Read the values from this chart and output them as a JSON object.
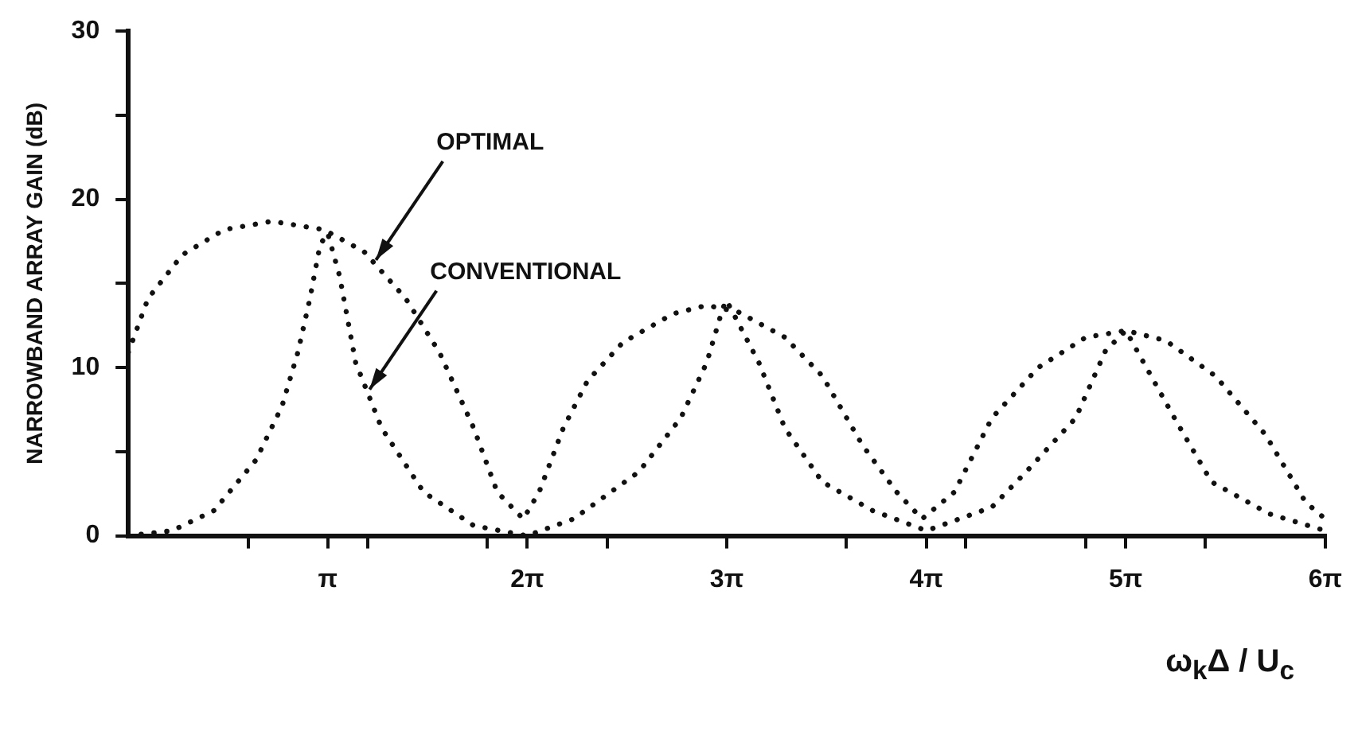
{
  "chart_data": {
    "type": "line",
    "ylabel": "NARROWBAND ARRAY GAIN (dB)",
    "xlabel": "ω$_{k}$Δ / U$_{c}$",
    "xlim": [
      0,
      18.85
    ],
    "ylim": [
      0,
      30
    ],
    "xticks": [
      {
        "value": 1.885,
        "label": null
      },
      {
        "value": 3.1416,
        "label": "π"
      },
      {
        "value": 3.77,
        "label": null
      },
      {
        "value": 5.655,
        "label": null
      },
      {
        "value": 6.2832,
        "label": "2π"
      },
      {
        "value": 7.54,
        "label": null
      },
      {
        "value": 9.4248,
        "label": "3π"
      },
      {
        "value": 11.31,
        "label": null
      },
      {
        "value": 12.5664,
        "label": "4π"
      },
      {
        "value": 13.19,
        "label": null
      },
      {
        "value": 15.08,
        "label": null
      },
      {
        "value": 15.708,
        "label": "5π"
      },
      {
        "value": 16.96,
        "label": null
      },
      {
        "value": 18.85,
        "label": "6π"
      }
    ],
    "yticks": [
      0,
      {
        "value": 5,
        "label": null
      },
      10,
      {
        "value": 15,
        "label": null
      },
      20,
      {
        "value": 25,
        "label": null
      },
      30
    ],
    "line_style": "dotted",
    "marker": "none",
    "grid": false,
    "series": [
      {
        "color": "#111111",
        "x": [
          0,
          0.31,
          0.85,
          1.51,
          2.26,
          3.08,
          3.71,
          4.37,
          4.9,
          5.44,
          5.81,
          6.22,
          6.47,
          6.85,
          7.23,
          7.79,
          8.58,
          9.11,
          9.61,
          10.34,
          10.93,
          11.56,
          12.1,
          12.5,
          13.01,
          13.6,
          14.33,
          15.08,
          15.71,
          16.34,
          17.12,
          17.91,
          18.54,
          18.85
        ],
        "values": [
          10.9,
          14.1,
          16.7,
          18.2,
          18.7,
          18.2,
          16.9,
          14.1,
          10.9,
          6.4,
          2.6,
          1.0,
          2.6,
          6.4,
          9.2,
          11.5,
          13.2,
          13.7,
          13.3,
          11.8,
          9.5,
          5.4,
          2.6,
          1.0,
          2.6,
          7.0,
          10.0,
          11.8,
          12.2,
          11.6,
          9.5,
          6.0,
          2.0,
          1.0
        ]
      },
      {
        "color": "#111111",
        "x": [
          0,
          0.69,
          1.35,
          2.01,
          2.42,
          2.67,
          2.86,
          3.02,
          3.14,
          3.33,
          3.58,
          3.99,
          4.65,
          5.44,
          6.28,
          7.01,
          8.04,
          8.7,
          9.11,
          9.36,
          9.42,
          9.93,
          10.34,
          10.93,
          11.72,
          12.57,
          13.6,
          14.14,
          14.92,
          15.39,
          15.71,
          16.52,
          17.06,
          17.97,
          18.85
        ],
        "values": [
          0,
          0.3,
          1.5,
          4.5,
          7.7,
          10.9,
          14.1,
          17.3,
          18.0,
          15.4,
          10.3,
          6.4,
          2.6,
          0.6,
          0,
          1.0,
          3.8,
          7.0,
          10.3,
          13.5,
          14.0,
          10.3,
          6.4,
          3.2,
          1.5,
          0.3,
          1.7,
          3.8,
          7.0,
          11.0,
          12.2,
          6.7,
          3.2,
          1.3,
          0.3
        ]
      }
    ],
    "annotations": [
      {
        "text": "OPTIMAL",
        "x": 3.9,
        "y": 16.4
      },
      {
        "text": "CONVENTIONAL",
        "x": 3.8,
        "y": 8.7
      }
    ]
  }
}
